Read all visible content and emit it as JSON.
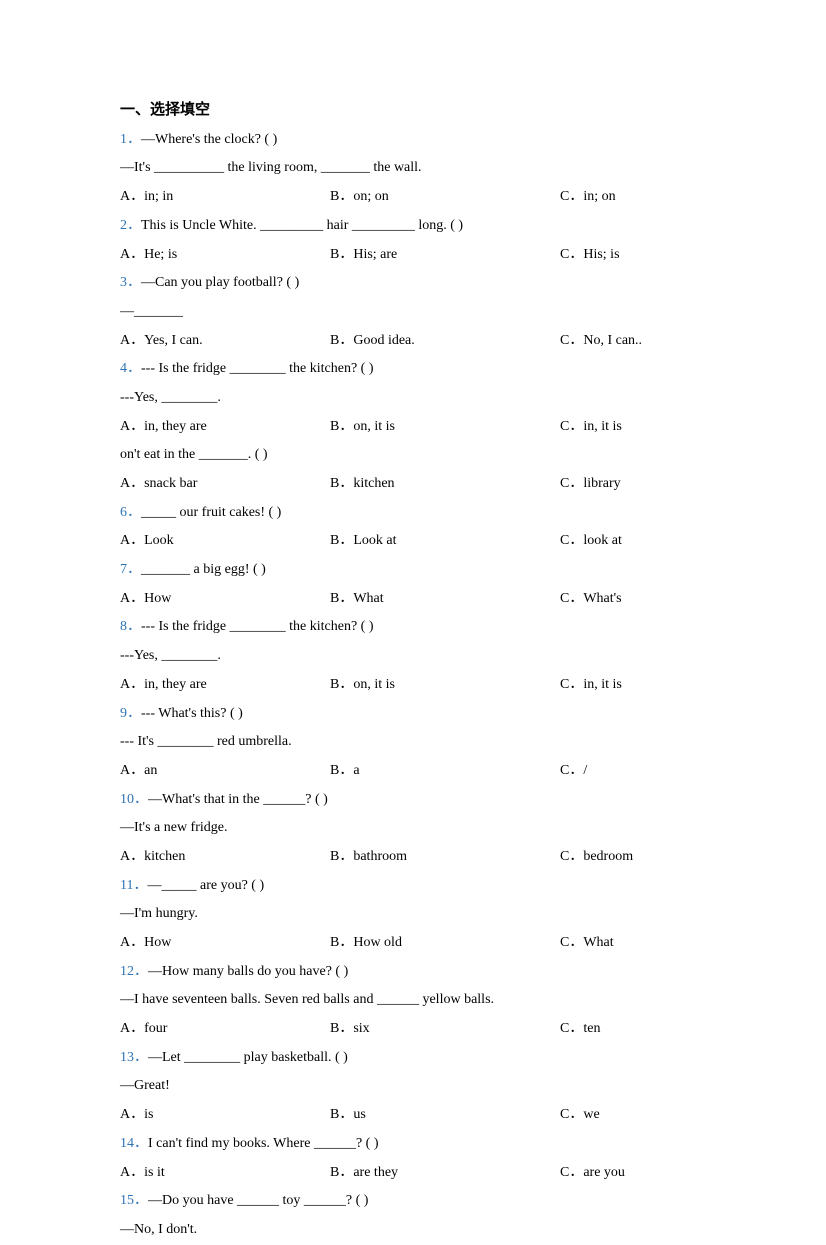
{
  "section_title": "一、选择填空",
  "questions": [
    {
      "num": "1．",
      "stem_lines": [
        "—Where's the clock? (     )"
      ],
      "post_lines": [
        "—It's __________ the living room, _______ the wall."
      ],
      "opts": {
        "a": "A．in; in",
        "b": "B．on; on",
        "c": "C．in; on"
      }
    },
    {
      "num": "2．",
      "stem_lines": [
        "This is Uncle White. _________ hair _________ long. (     )"
      ],
      "opts": {
        "a": "A．He; is",
        "b": "B．His; are",
        "c": "C．His; is"
      }
    },
    {
      "num": "3．",
      "stem_lines": [
        "—Can you play football? (     )"
      ],
      "post_lines": [
        "—_______"
      ],
      "opts": {
        "a": "A．Yes, I can.",
        "b": "B．Good idea.",
        "c": "C．No, I can.."
      }
    },
    {
      "num": "4．",
      "stem_lines": [
        "--- Is the fridge ________ the kitchen? (      )"
      ],
      "post_lines": [
        "---Yes, ________."
      ],
      "opts": {
        "a": "A．in, they are",
        "b": "B．on, it is",
        "c": "C．in, it is"
      },
      "extra_line": "on't eat in the _______. (     )",
      "extra_opts": {
        "a": "A．snack bar",
        "b": "B．kitchen",
        "c": "C．library"
      }
    },
    {
      "num": "6．",
      "stem_lines": [
        "_____ our fruit cakes! (     )"
      ],
      "opts": {
        "a": "A．Look",
        "b": "B．Look at",
        "c": "C．look at"
      }
    },
    {
      "num": "7．",
      "stem_lines": [
        "_______ a big egg! (      )"
      ],
      "opts": {
        "a": "A．How",
        "b": "B．What",
        "c": "C．What's"
      }
    },
    {
      "num": "8．",
      "stem_lines": [
        "--- Is the fridge ________ the kitchen? (      )"
      ],
      "post_lines": [
        "---Yes, ________."
      ],
      "opts": {
        "a": "A．in, they are",
        "b": "B．on, it is",
        "c": "C．in, it is"
      }
    },
    {
      "num": "9．",
      "stem_lines": [
        "--- What's this? (      )"
      ],
      "post_lines": [
        "--- It's ________ red umbrella."
      ],
      "opts": {
        "a": "A．an",
        "b": "B．a",
        "c": "C．/"
      }
    },
    {
      "num": "10．",
      "stem_lines": [
        "—What's that in the ______? (      )"
      ],
      "post_lines": [
        "—It's a new fridge."
      ],
      "opts": {
        "a": "A．kitchen",
        "b": "B．bathroom",
        "c": "C．bedroom"
      }
    },
    {
      "num": "11．",
      "stem_lines": [
        "—_____ are you? (      )"
      ],
      "post_lines": [
        "—I'm hungry."
      ],
      "opts": {
        "a": "A．How",
        "b": "B．How old",
        "c": "C．What"
      }
    },
    {
      "num": "12．",
      "stem_lines": [
        "—How many balls do you have? (      )"
      ],
      "post_lines": [
        "—I have seventeen balls. Seven red balls and ______ yellow balls."
      ],
      "opts": {
        "a": "A．four",
        "b": "B．six",
        "c": "C．ten"
      }
    },
    {
      "num": "13．",
      "stem_lines": [
        "—Let ________ play basketball. (     )"
      ],
      "post_lines": [
        "—Great!"
      ],
      "opts": {
        "a": "A．is",
        "b": "B．us",
        "c": "C．we"
      }
    },
    {
      "num": "14．",
      "stem_lines": [
        "I can't find my books. Where ______? (      )"
      ],
      "opts": {
        "a": "A．is it",
        "b": "B．are they",
        "c": "C．are you"
      }
    },
    {
      "num": "15．",
      "stem_lines": [
        "—Do you have ______ toy ______? (      )"
      ],
      "post_lines": [
        "—No, I don't."
      ],
      "opts": null
    }
  ]
}
